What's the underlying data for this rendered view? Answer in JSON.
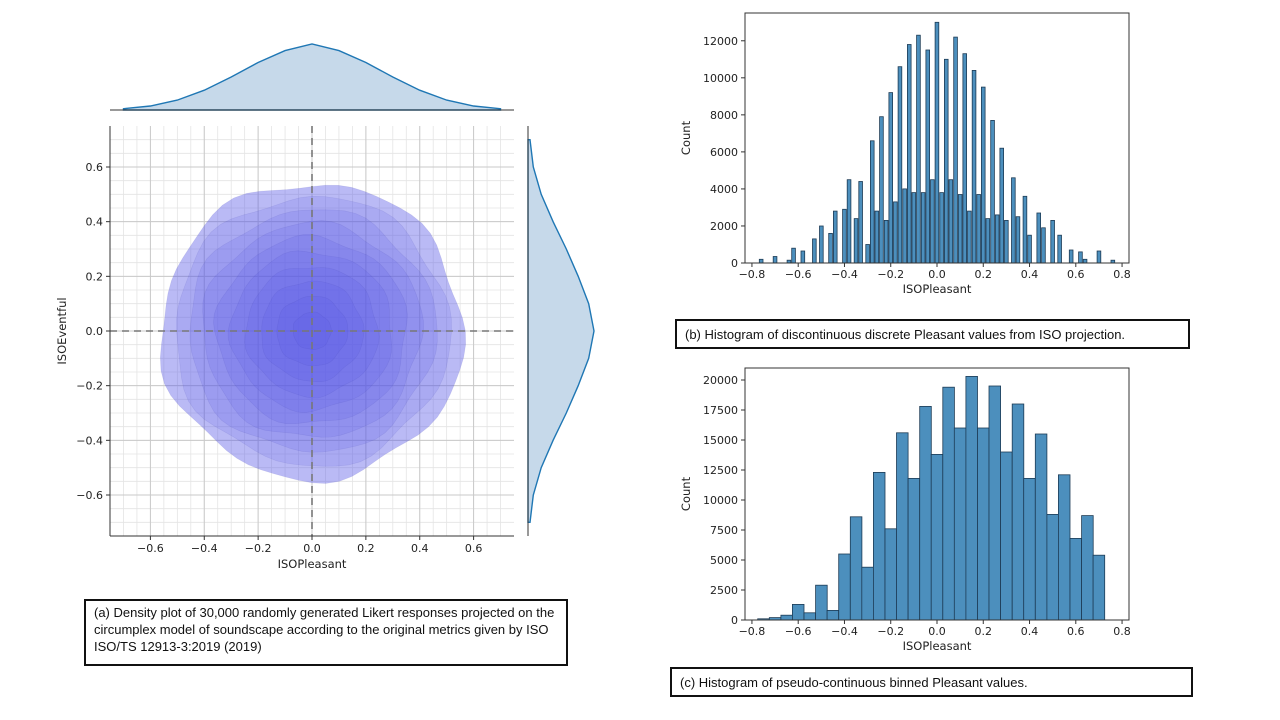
{
  "captions": {
    "a": "(a) Density plot of 30,000 randomly generated Likert responses projected on the circumplex model of soundscape according to the original metrics given by ISO ISO/TS 12913-3:2019  (2019)",
    "b": "(b) Histogram of discontinuous discrete Pleasant values from ISO projection.",
    "c": "(c) Histogram of pseudo-continuous binned Pleasant values."
  },
  "chart_data": [
    {
      "id": "a",
      "type": "heatmap",
      "subtype": "kde-density-jointplot",
      "xlabel": "ISOPleasant",
      "ylabel": "ISOEventful",
      "xlim": [
        -0.75,
        0.75
      ],
      "ylim": [
        -0.75,
        0.75
      ],
      "xticks": [
        "−0.6",
        "−0.4",
        "−0.2",
        "0.0",
        "0.2",
        "0.4",
        "0.6"
      ],
      "yticks": [
        "−0.6",
        "−0.4",
        "−0.2",
        "0.0",
        "0.2",
        "0.4",
        "0.6"
      ],
      "grid": true,
      "minor_grid": true,
      "crosshair_at": [
        0,
        0
      ],
      "contour_levels": 10,
      "outer_contour_radius": 0.55,
      "center": [
        0,
        0
      ],
      "fill_color": "#5a5ae6",
      "marginal_color": "#1f77b4",
      "marginal_x": {
        "x": [
          -0.7,
          -0.6,
          -0.5,
          -0.4,
          -0.3,
          -0.2,
          -0.1,
          0.0,
          0.1,
          0.2,
          0.3,
          0.4,
          0.5,
          0.6,
          0.7
        ],
        "density": [
          0.02,
          0.06,
          0.15,
          0.3,
          0.5,
          0.72,
          0.9,
          1.0,
          0.9,
          0.72,
          0.5,
          0.3,
          0.15,
          0.06,
          0.02
        ]
      },
      "marginal_y": {
        "y": [
          -0.7,
          -0.6,
          -0.5,
          -0.4,
          -0.3,
          -0.2,
          -0.1,
          0.0,
          0.1,
          0.2,
          0.3,
          0.4,
          0.5,
          0.6,
          0.7
        ],
        "density": [
          0.03,
          0.08,
          0.2,
          0.38,
          0.58,
          0.76,
          0.92,
          1.0,
          0.92,
          0.76,
          0.58,
          0.38,
          0.2,
          0.08,
          0.03
        ]
      }
    },
    {
      "id": "b",
      "type": "bar",
      "subtype": "histogram",
      "xlabel": "ISOPleasant",
      "ylabel": "Count",
      "xlim": [
        -0.83,
        0.83
      ],
      "ylim": [
        0,
        13500
      ],
      "xticks": [
        "−0.8",
        "−0.6",
        "−0.4",
        "−0.2",
        "0.0",
        "0.2",
        "0.4",
        "0.6",
        "0.8"
      ],
      "yticks": [
        "0",
        "2000",
        "4000",
        "6000",
        "8000",
        "10000",
        "12000"
      ],
      "bar_color": "#4c8fbd",
      "x": [
        -0.76,
        -0.7,
        -0.64,
        -0.62,
        -0.58,
        -0.53,
        -0.5,
        -0.46,
        -0.44,
        -0.4,
        -0.38,
        -0.35,
        -0.33,
        -0.3,
        -0.28,
        -0.26,
        -0.24,
        -0.22,
        -0.2,
        -0.18,
        -0.16,
        -0.14,
        -0.12,
        -0.1,
        -0.08,
        -0.06,
        -0.04,
        -0.02,
        0.0,
        0.02,
        0.04,
        0.06,
        0.08,
        0.1,
        0.12,
        0.14,
        0.16,
        0.18,
        0.2,
        0.22,
        0.24,
        0.26,
        0.28,
        0.3,
        0.33,
        0.35,
        0.38,
        0.4,
        0.44,
        0.46,
        0.5,
        0.53,
        0.58,
        0.62,
        0.64,
        0.7,
        0.76
      ],
      "values": [
        200,
        350,
        150,
        800,
        650,
        1300,
        2000,
        1600,
        2800,
        2900,
        4500,
        2400,
        4400,
        1000,
        6600,
        2800,
        7900,
        2300,
        9200,
        3300,
        10600,
        4000,
        11800,
        3800,
        12300,
        3800,
        11500,
        4500,
        13000,
        3800,
        11000,
        4500,
        12200,
        3700,
        11300,
        2800,
        10400,
        3700,
        9500,
        2400,
        7700,
        2600,
        6200,
        2300,
        4600,
        2500,
        3600,
        1500,
        2700,
        1900,
        2300,
        1500,
        700,
        600,
        200,
        650,
        150
      ]
    },
    {
      "id": "c",
      "type": "bar",
      "subtype": "histogram",
      "xlabel": "ISOPleasant",
      "ylabel": "Count",
      "xlim": [
        -0.83,
        0.83
      ],
      "ylim": [
        0,
        21000
      ],
      "xticks": [
        "−0.8",
        "−0.6",
        "−0.4",
        "−0.2",
        "0.0",
        "0.2",
        "0.4",
        "0.6",
        "0.8"
      ],
      "yticks": [
        "0",
        "2500",
        "5000",
        "7500",
        "10000",
        "12500",
        "15000",
        "17500",
        "20000"
      ],
      "bar_color": "#4c8fbd",
      "x": [
        -0.75,
        -0.7,
        -0.65,
        -0.6,
        -0.55,
        -0.5,
        -0.45,
        -0.4,
        -0.35,
        -0.3,
        -0.25,
        -0.2,
        -0.15,
        -0.1,
        -0.05,
        0.0,
        0.05,
        0.1,
        0.15,
        0.2,
        0.25,
        0.3,
        0.35,
        0.4,
        0.45,
        0.5,
        0.55,
        0.6,
        0.65,
        0.7
      ],
      "values": [
        100,
        200,
        400,
        1300,
        600,
        2900,
        800,
        5500,
        8600,
        4400,
        12300,
        7600,
        15600,
        11800,
        17800,
        13800,
        19400,
        16000,
        20300,
        16000,
        19500,
        14000,
        18000,
        11800,
        15500,
        8800,
        12100,
        6800,
        8700,
        5400
      ],
      "note": "values listed by bin position"
    }
  ]
}
